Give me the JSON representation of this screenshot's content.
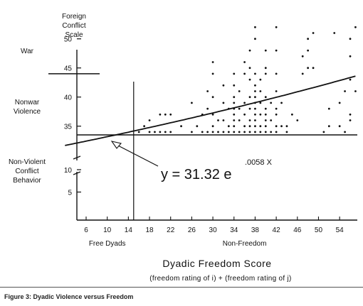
{
  "figure": {
    "caption": "Figure 3: Dyadic Violence versus Freedom"
  },
  "chart_data": {
    "type": "scatter",
    "ylabel": [
      "Foreign",
      "Conflict",
      "Scale"
    ],
    "xlabel": "Dyadic Freedom Score",
    "xlabel_sub": "(freedom rating of i) + (freedom rating of j)",
    "x_ticks": [
      6,
      10,
      14,
      18,
      22,
      26,
      30,
      34,
      38,
      42,
      46,
      50,
      54
    ],
    "x_tick_labels": [
      "6",
      "10",
      "14",
      "18",
      "22",
      "26",
      "30",
      "34",
      "38",
      "42",
      "46",
      "50",
      "54"
    ],
    "xlim": [
      2,
      58
    ],
    "y_ticks_upper": [
      35,
      40,
      45,
      50
    ],
    "y_ticks_lower": [
      5,
      10
    ],
    "y_tick_labels_upper": [
      "35",
      "40",
      "45",
      "50"
    ],
    "y_tick_labels_lower": [
      "5",
      "10"
    ],
    "y_axis_break": true,
    "y_ranges": {
      "upper": [
        30,
        53
      ],
      "lower": [
        0,
        11
      ]
    },
    "regions_y": [
      {
        "label": "War",
        "y": 48
      },
      {
        "label": [
          "Nonwar",
          "Violence"
        ],
        "y": 38.5
      },
      {
        "label": [
          "Non-Violent",
          "Conflict",
          "Behavior"
        ],
        "y": 10
      }
    ],
    "regions_x": [
      {
        "label": "Free Dyads",
        "x": 10
      },
      {
        "label": "Non-Freedom",
        "x": 36
      }
    ],
    "reference_lines": {
      "war_threshold_y": 44,
      "violence_threshold_y": 33.5,
      "freedom_divider_x": 15
    },
    "fit": {
      "equation_base": "y = 31.32 e",
      "equation_exp": ".0058 X",
      "a": 31.32,
      "b": 0.0058,
      "x_range": [
        2,
        57
      ]
    },
    "points": [
      [
        16,
        34
      ],
      [
        17,
        35
      ],
      [
        18,
        34
      ],
      [
        18,
        36
      ],
      [
        19,
        34
      ],
      [
        20,
        34
      ],
      [
        20,
        37
      ],
      [
        21,
        34
      ],
      [
        21,
        37
      ],
      [
        22,
        34
      ],
      [
        22,
        37
      ],
      [
        24,
        35
      ],
      [
        26,
        34
      ],
      [
        26,
        39
      ],
      [
        27,
        35
      ],
      [
        28,
        34
      ],
      [
        28,
        37
      ],
      [
        29,
        34
      ],
      [
        29,
        38
      ],
      [
        29,
        41
      ],
      [
        30,
        34
      ],
      [
        30,
        35
      ],
      [
        30,
        37
      ],
      [
        30,
        40
      ],
      [
        30,
        44
      ],
      [
        30,
        46
      ],
      [
        31,
        34
      ],
      [
        31,
        36
      ],
      [
        32,
        34
      ],
      [
        32,
        36
      ],
      [
        32,
        39
      ],
      [
        32,
        42
      ],
      [
        33,
        34
      ],
      [
        33,
        35
      ],
      [
        33,
        38
      ],
      [
        34,
        34
      ],
      [
        34,
        35
      ],
      [
        34,
        36
      ],
      [
        34,
        37
      ],
      [
        34,
        38
      ],
      [
        34,
        39
      ],
      [
        34,
        40
      ],
      [
        34,
        42
      ],
      [
        34,
        44
      ],
      [
        35,
        34
      ],
      [
        35,
        36
      ],
      [
        35,
        38
      ],
      [
        35,
        41
      ],
      [
        36,
        34
      ],
      [
        36,
        35
      ],
      [
        36,
        37
      ],
      [
        36,
        39
      ],
      [
        36,
        44
      ],
      [
        36,
        46
      ],
      [
        37,
        34
      ],
      [
        37,
        35
      ],
      [
        37,
        36
      ],
      [
        37,
        38
      ],
      [
        37,
        40
      ],
      [
        37,
        43
      ],
      [
        37,
        45
      ],
      [
        37,
        48
      ],
      [
        38,
        34
      ],
      [
        38,
        35
      ],
      [
        38,
        36
      ],
      [
        38,
        37
      ],
      [
        38,
        38
      ],
      [
        38,
        39
      ],
      [
        38,
        40
      ],
      [
        38,
        41
      ],
      [
        38,
        42
      ],
      [
        38,
        44
      ],
      [
        38,
        50
      ],
      [
        38,
        52
      ],
      [
        39,
        34
      ],
      [
        39,
        35
      ],
      [
        39,
        37
      ],
      [
        39,
        39
      ],
      [
        39,
        41
      ],
      [
        39,
        43
      ],
      [
        40,
        34
      ],
      [
        40,
        35
      ],
      [
        40,
        36
      ],
      [
        40,
        37
      ],
      [
        40,
        38
      ],
      [
        40,
        40
      ],
      [
        40,
        44
      ],
      [
        40,
        45
      ],
      [
        40,
        48
      ],
      [
        41,
        34
      ],
      [
        41,
        36
      ],
      [
        41,
        39
      ],
      [
        42,
        34
      ],
      [
        42,
        35
      ],
      [
        42,
        37
      ],
      [
        42,
        38
      ],
      [
        42,
        41
      ],
      [
        42,
        44
      ],
      [
        42,
        48
      ],
      [
        42,
        52
      ],
      [
        43,
        35
      ],
      [
        43,
        39
      ],
      [
        44,
        34
      ],
      [
        44,
        35
      ],
      [
        45,
        37
      ],
      [
        46,
        36
      ],
      [
        47,
        44
      ],
      [
        47,
        47
      ],
      [
        48,
        45
      ],
      [
        48,
        48
      ],
      [
        48,
        50
      ],
      [
        49,
        45
      ],
      [
        49,
        51
      ],
      [
        51,
        34
      ],
      [
        52,
        35
      ],
      [
        52,
        38
      ],
      [
        53,
        51
      ],
      [
        54,
        35
      ],
      [
        54,
        39
      ],
      [
        55,
        34
      ],
      [
        55,
        41
      ],
      [
        56,
        36
      ],
      [
        56,
        37
      ],
      [
        56,
        43
      ],
      [
        56,
        47
      ],
      [
        56,
        50
      ],
      [
        57,
        41
      ],
      [
        57,
        52
      ]
    ]
  }
}
